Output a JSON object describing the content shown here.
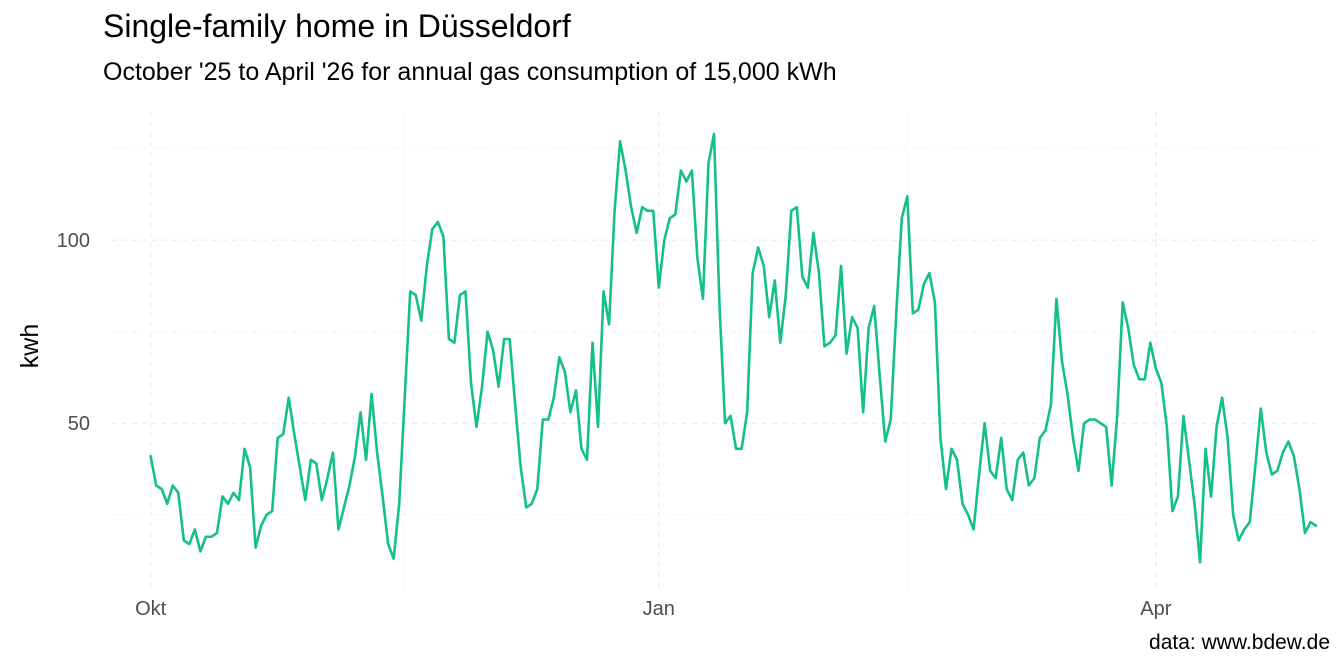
{
  "chart_data": {
    "type": "line",
    "title": "Single-family home in Düsseldorf",
    "subtitle": "October '25 to April '26 for annual gas consumption of 15,000 kWh",
    "caption": "data: www.bdew.de",
    "xlabel": "",
    "ylabel": "kwh",
    "x_start": "2025-10-01",
    "x_range": [
      "2025-09-24",
      "2026-04-30"
    ],
    "ylim": [
      5,
      135
    ],
    "x_ticks": [
      {
        "label": "Okt",
        "date": "2025-10-01"
      },
      {
        "label": "Jan",
        "date": "2026-01-01"
      },
      {
        "label": "Apr",
        "date": "2026-04-01"
      }
    ],
    "y_ticks": [
      50,
      100
    ],
    "grid": true,
    "line_color": "#14C08A",
    "series": [
      {
        "values": [
          41,
          33,
          32,
          28,
          33,
          31,
          18,
          17,
          21,
          15,
          19,
          19,
          20,
          30,
          28,
          31,
          29,
          43,
          38,
          16,
          22,
          25,
          26,
          46,
          47,
          57,
          47,
          38,
          29,
          40,
          39,
          29,
          35,
          42,
          21,
          27,
          33,
          41,
          53,
          40,
          58,
          42,
          30,
          17,
          13,
          28,
          57,
          86,
          85,
          78,
          93,
          103,
          105,
          101,
          73,
          72,
          85,
          86,
          61,
          49,
          60,
          75,
          70,
          60,
          73,
          73,
          55,
          38,
          27,
          28,
          32,
          51,
          51,
          57,
          68,
          64,
          53,
          59,
          43,
          40,
          72,
          49,
          86,
          77,
          108,
          127,
          119,
          109,
          102,
          109,
          108,
          108,
          87,
          100,
          106,
          107,
          119,
          116,
          119,
          95,
          84,
          121,
          129,
          82,
          50,
          52,
          43,
          43,
          53,
          91,
          98,
          93,
          79,
          89,
          72,
          85,
          108,
          109,
          90,
          87,
          102,
          91,
          71,
          72,
          74,
          93,
          69,
          79,
          76,
          53,
          76,
          82,
          63,
          45,
          51,
          80,
          106,
          112,
          80,
          81,
          88,
          91,
          83,
          46,
          32,
          43,
          40,
          28,
          25,
          21,
          36,
          50,
          37,
          35,
          46,
          32,
          29,
          40,
          42,
          33,
          35,
          46,
          48,
          55,
          84,
          67,
          58,
          46,
          37,
          50,
          51,
          51,
          50,
          49,
          33,
          52,
          83,
          76,
          66,
          62,
          62,
          72,
          65,
          61,
          49,
          26,
          30,
          52,
          40,
          28,
          12,
          43,
          30,
          49,
          57,
          46,
          25,
          18,
          21,
          23,
          38,
          54,
          42,
          36,
          37,
          42,
          45,
          41,
          32,
          20,
          23,
          22
        ]
      }
    ]
  }
}
